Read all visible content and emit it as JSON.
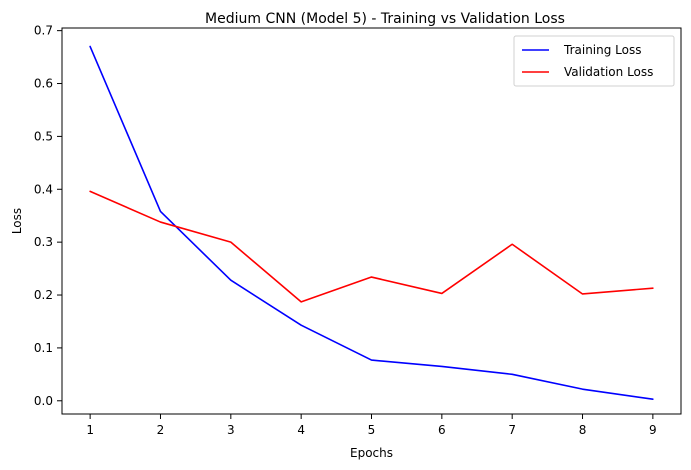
{
  "chart_data": {
    "type": "line",
    "title": "Medium CNN (Model 5) - Training vs Validation Loss",
    "xlabel": "Epochs",
    "ylabel": "Loss",
    "x": [
      1,
      2,
      3,
      4,
      5,
      6,
      7,
      8,
      9
    ],
    "xticks": [
      "1",
      "2",
      "3",
      "4",
      "5",
      "6",
      "7",
      "8",
      "9"
    ],
    "yticks": [
      "0.0",
      "0.1",
      "0.2",
      "0.3",
      "0.4",
      "0.5",
      "0.6",
      "0.7"
    ],
    "xlim": [
      0.6,
      9.4
    ],
    "ylim": [
      -0.025,
      0.705
    ],
    "grid": false,
    "legend": "top-right",
    "series": [
      {
        "name": "Training Loss",
        "color": "#0000ff",
        "values": [
          0.67,
          0.358,
          0.228,
          0.143,
          0.077,
          0.065,
          0.05,
          0.022,
          0.003
        ]
      },
      {
        "name": "Validation Loss",
        "color": "#ff0000",
        "values": [
          0.396,
          0.338,
          0.3,
          0.187,
          0.234,
          0.203,
          0.296,
          0.202,
          0.213
        ]
      }
    ]
  }
}
